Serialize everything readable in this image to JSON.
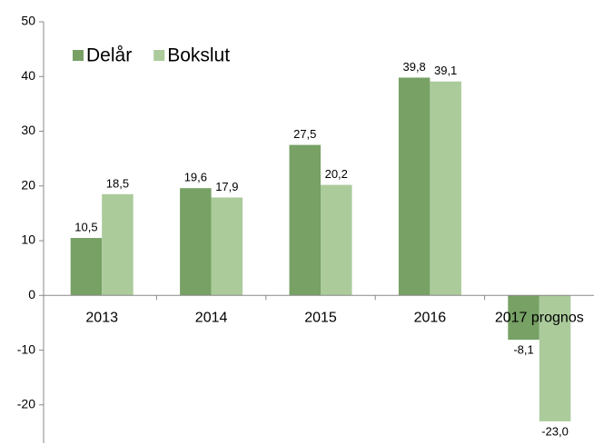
{
  "chart_data": {
    "type": "bar",
    "categories": [
      "2013",
      "2014",
      "2015",
      "2016",
      "2017 prognos"
    ],
    "series": [
      {
        "name": "Delår",
        "color": "#77a165",
        "values": [
          10.5,
          19.6,
          27.5,
          39.8,
          -8.1
        ],
        "value_labels": [
          "10,5",
          "19,6",
          "27,5",
          "39,8",
          "-8,1"
        ]
      },
      {
        "name": "Bokslut",
        "color": "#abcb9b",
        "values": [
          18.5,
          17.9,
          20.2,
          39.1,
          -23.0
        ],
        "value_labels": [
          "18,5",
          "17,9",
          "20,2",
          "39,1",
          "-23,0"
        ]
      }
    ],
    "ylim": [
      -27,
      50
    ],
    "yticks": [
      -20,
      -10,
      0,
      10,
      20,
      30,
      40,
      50
    ],
    "grid": false,
    "legend": "upper left"
  }
}
